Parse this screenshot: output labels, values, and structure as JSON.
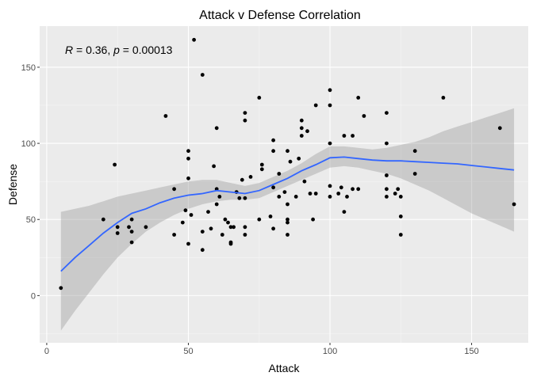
{
  "chart_data": {
    "type": "scatter",
    "title": "Attack v Defense Correlation",
    "xlabel": "Attack",
    "ylabel": "Defense",
    "xlim": [
      -2.5,
      170
    ],
    "ylim": [
      -31,
      177
    ],
    "xticks": [
      0,
      50,
      100,
      150
    ],
    "yticks": [
      0,
      50,
      100,
      150
    ],
    "xtick_labels": [
      "0",
      "50",
      "100",
      "150"
    ],
    "ytick_labels": [
      "0",
      "50",
      "100",
      "150"
    ],
    "grid": true,
    "annotation": {
      "r_symbol": "R",
      "r_text": " = 0.36, ",
      "p_symbol": "p",
      "p_text": " = 0.00013"
    },
    "colors": {
      "panel": "#ebebeb",
      "grid_major": "#ffffff",
      "grid_minor": "#f5f5f5",
      "points": "#000000",
      "smooth_line": "#3366ff",
      "ribbon": "#999999"
    },
    "points": [
      [
        5,
        5
      ],
      [
        20,
        50
      ],
      [
        24,
        86
      ],
      [
        25,
        41
      ],
      [
        25,
        45
      ],
      [
        29,
        45
      ],
      [
        30,
        35
      ],
      [
        30,
        42
      ],
      [
        30,
        50
      ],
      [
        35,
        45
      ],
      [
        42,
        118
      ],
      [
        45,
        40
      ],
      [
        45,
        70
      ],
      [
        48,
        48
      ],
      [
        49,
        56
      ],
      [
        50,
        34
      ],
      [
        50,
        77
      ],
      [
        50,
        90
      ],
      [
        50,
        95
      ],
      [
        51,
        53
      ],
      [
        52,
        168
      ],
      [
        55,
        145
      ],
      [
        55,
        30
      ],
      [
        55,
        42
      ],
      [
        57,
        55
      ],
      [
        58,
        44
      ],
      [
        59,
        85
      ],
      [
        60,
        60
      ],
      [
        60,
        70
      ],
      [
        60,
        110
      ],
      [
        61,
        65
      ],
      [
        62,
        40
      ],
      [
        63,
        50
      ],
      [
        64,
        48
      ],
      [
        65,
        45
      ],
      [
        65,
        35
      ],
      [
        65,
        34
      ],
      [
        66,
        45
      ],
      [
        67,
        68
      ],
      [
        68,
        64
      ],
      [
        69,
        76
      ],
      [
        70,
        64
      ],
      [
        70,
        40
      ],
      [
        70,
        45
      ],
      [
        70,
        115
      ],
      [
        70,
        120
      ],
      [
        72,
        78
      ],
      [
        75,
        130
      ],
      [
        75,
        50
      ],
      [
        76,
        83
      ],
      [
        76,
        86
      ],
      [
        79,
        52
      ],
      [
        80,
        44
      ],
      [
        80,
        71
      ],
      [
        80,
        95
      ],
      [
        80,
        102
      ],
      [
        82,
        80
      ],
      [
        82,
        65
      ],
      [
        84,
        68
      ],
      [
        85,
        40
      ],
      [
        85,
        50
      ],
      [
        85,
        48
      ],
      [
        85,
        60
      ],
      [
        85,
        95
      ],
      [
        86,
        88
      ],
      [
        88,
        65
      ],
      [
        89,
        90
      ],
      [
        90,
        115
      ],
      [
        90,
        110
      ],
      [
        90,
        105
      ],
      [
        91,
        75
      ],
      [
        92,
        108
      ],
      [
        93,
        67
      ],
      [
        94,
        50
      ],
      [
        95,
        67
      ],
      [
        95,
        125
      ],
      [
        100,
        100
      ],
      [
        100,
        72
      ],
      [
        100,
        65
      ],
      [
        100,
        135
      ],
      [
        100,
        125
      ],
      [
        103,
        67
      ],
      [
        104,
        71
      ],
      [
        105,
        55
      ],
      [
        105,
        105
      ],
      [
        106,
        65
      ],
      [
        108,
        70
      ],
      [
        108,
        105
      ],
      [
        110,
        130
      ],
      [
        110,
        70
      ],
      [
        112,
        118
      ],
      [
        120,
        120
      ],
      [
        120,
        100
      ],
      [
        120,
        79
      ],
      [
        120,
        65
      ],
      [
        120,
        70
      ],
      [
        123,
        67
      ],
      [
        124,
        70
      ],
      [
        125,
        65
      ],
      [
        125,
        52
      ],
      [
        125,
        40
      ],
      [
        130,
        95
      ],
      [
        130,
        80
      ],
      [
        140,
        130
      ],
      [
        160,
        110
      ],
      [
        165,
        60
      ]
    ],
    "smooth": {
      "x": [
        5,
        10,
        15,
        20,
        25,
        30,
        35,
        40,
        45,
        50,
        55,
        60,
        65,
        70,
        75,
        80,
        85,
        90,
        95,
        100,
        105,
        110,
        115,
        120,
        125,
        130,
        135,
        140,
        145,
        150,
        155,
        160,
        165
      ],
      "y": [
        16,
        25,
        33,
        41,
        48,
        54,
        57,
        61,
        64,
        66,
        67,
        69,
        68,
        67,
        69,
        73,
        77,
        82,
        86,
        90.5,
        91,
        90,
        89,
        88.5,
        88.5,
        88,
        87.5,
        87,
        86.5,
        85.5,
        84.5,
        83.5,
        82.5
      ],
      "ymin": [
        -23,
        -10,
        2,
        14,
        25,
        34,
        42,
        48,
        53,
        57,
        60,
        62,
        63,
        63,
        64,
        68,
        72,
        76,
        80,
        84,
        85,
        84,
        82,
        80,
        77,
        73,
        69,
        64,
        59,
        54,
        50,
        46,
        42
      ],
      "ymax": [
        55,
        57,
        59,
        62,
        65,
        67,
        69,
        71,
        73,
        75,
        76,
        76,
        74,
        72,
        74,
        78,
        82,
        87,
        93,
        98,
        98,
        97,
        96,
        97,
        99,
        101,
        104,
        108,
        111,
        114,
        117,
        120,
        123
      ]
    }
  }
}
